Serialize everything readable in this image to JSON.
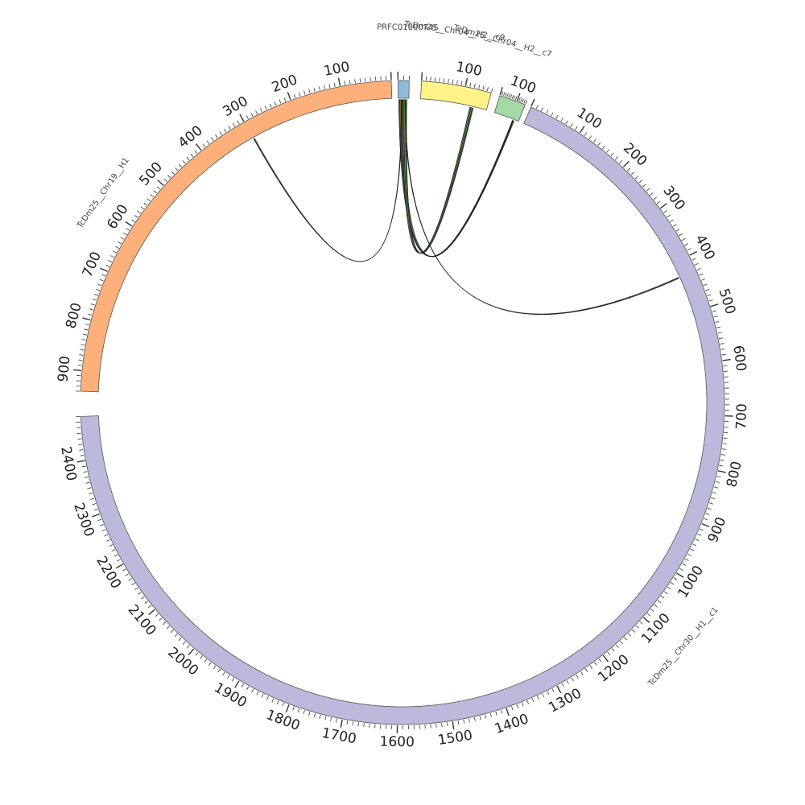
{
  "diagram": {
    "type": "circos",
    "chromosomes": [
      {
        "id": "c30",
        "name": "TcDm25__Chr30__H1__c1",
        "length": 2480,
        "color": "#BCB9DC",
        "label_tick_step": 100,
        "minor_tick_step": 10
      },
      {
        "id": "c19",
        "name": "TcDm25__Chr19__H1",
        "length": 940,
        "color": "#FDB07A",
        "label_tick_step": 100,
        "minor_tick_step": 10
      },
      {
        "id": "prfc",
        "name": "PRFC01000745",
        "length": 20,
        "color": "#8DBBD9",
        "label_tick_step": 100,
        "minor_tick_step": 10
      },
      {
        "id": "c04a",
        "name": "TcDm25__Chr04__H2__c9",
        "length": 160,
        "color": "#FFF287",
        "label_tick_step": 100,
        "minor_tick_step": 10
      },
      {
        "id": "c04b",
        "name": "TcDm25__Chr04__H2__c7",
        "length": 150,
        "color": "#A3D9A3",
        "label_tick_step": 100,
        "minor_tick_step": 10
      }
    ],
    "links": [
      {
        "from": "prfc",
        "from_range": [
          1,
          9
        ],
        "to": "c04b",
        "to_range": [
          115,
          123
        ],
        "color": "#5B5378"
      },
      {
        "from": "prfc",
        "from_range": [
          3,
          7
        ],
        "to": "c04b",
        "to_range": [
          118,
          124
        ],
        "color": "#F0A81E"
      },
      {
        "from": "prfc",
        "from_range": [
          5,
          10
        ],
        "to": "c04b",
        "to_range": [
          120,
          125
        ],
        "color": "#8A7BB6"
      },
      {
        "from": "prfc",
        "from_range": [
          8,
          16
        ],
        "to": "c04a",
        "to_range": [
          120,
          128
        ],
        "color": "#2E8B4A"
      },
      {
        "from": "prfc",
        "from_range": [
          11,
          14
        ],
        "to": "c04a",
        "to_range": [
          123,
          126
        ],
        "color": "#88C040"
      },
      {
        "from": "prfc",
        "from_range": [
          6,
          7
        ],
        "to": "c19",
        "to_range": [
          298,
          300
        ],
        "color": "#334455"
      },
      {
        "from": "prfc",
        "from_range": [
          13,
          14
        ],
        "to": "c30",
        "to_range": [
          428,
          430
        ],
        "color": "#6B4A30"
      }
    ]
  }
}
